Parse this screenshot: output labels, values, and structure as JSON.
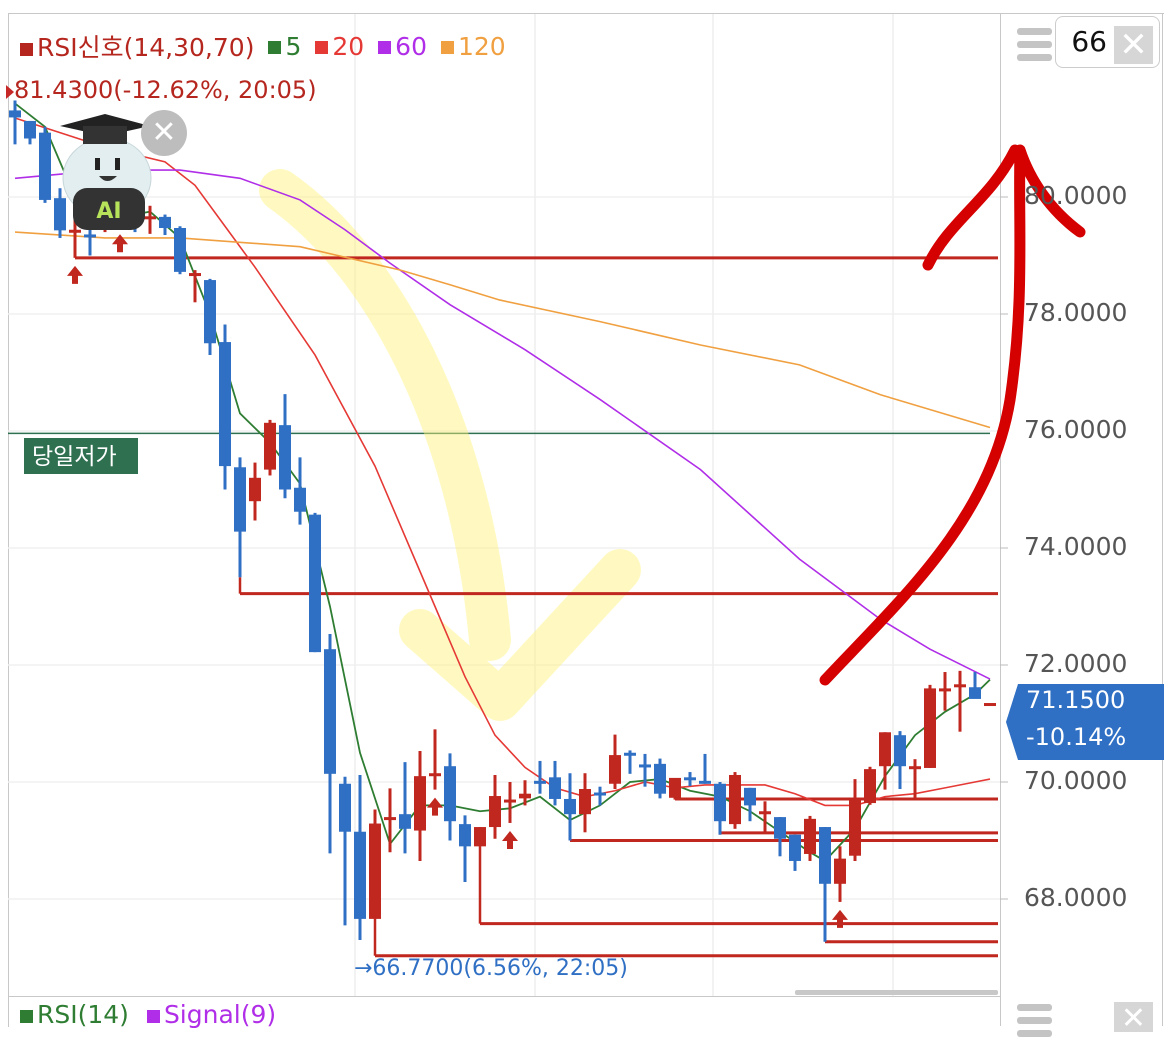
{
  "legend": {
    "items": [
      {
        "label": "RSI신호(14,30,70)",
        "color": "#b5261e"
      },
      {
        "label": "5",
        "color": "#2e7d32"
      },
      {
        "label": "20",
        "color": "#e53935"
      },
      {
        "label": "60",
        "color": "#b02ee8"
      },
      {
        "label": "120",
        "color": "#f0a040"
      }
    ]
  },
  "high_marker": "81.4300(-12.62%, 20:05)",
  "low_marker": "→66.7700(6.56%, 22:05)",
  "day_low_label": "당일저가",
  "current_price": {
    "price": "71.1500",
    "change": "-10.14%"
  },
  "period_input": "66",
  "close_symbol": "✕",
  "ai_badge": "AI",
  "bottom_legend": [
    {
      "label": "RSI(14)",
      "color": "#2e7d32"
    },
    {
      "label": "Signal(9)",
      "color": "#b02ee8"
    }
  ],
  "colors": {
    "up": "#c0271f",
    "down": "#2f6fc4",
    "signal_line": "#c0271f",
    "day_low": "#2f7050"
  },
  "chart_data": {
    "type": "candlestick",
    "y_axis": {
      "ticks": [
        "80.0000",
        "78.0000",
        "76.0000",
        "74.0000",
        "72.0000",
        "70.0000",
        "68.0000"
      ],
      "tick_values": [
        80,
        78,
        76,
        74,
        72,
        70,
        68
      ],
      "position": "right"
    },
    "grid": true,
    "candles_ohlc": [
      [
        81.48,
        81.65,
        80.9,
        81.36
      ],
      [
        81.3,
        81.3,
        80.9,
        81.0
      ],
      [
        81.1,
        81.2,
        79.9,
        79.95
      ],
      [
        79.98,
        80.15,
        79.3,
        79.43
      ],
      [
        79.42,
        79.63,
        78.96,
        79.44
      ],
      [
        79.36,
        79.58,
        79.0,
        79.34
      ],
      [
        79.5,
        79.8,
        79.4,
        79.8
      ],
      [
        79.6,
        79.7,
        79.5,
        79.7
      ],
      [
        79.6,
        79.75,
        79.4,
        79.58
      ],
      [
        79.65,
        79.85,
        79.37,
        79.67
      ],
      [
        79.66,
        79.7,
        79.35,
        79.47
      ],
      [
        79.47,
        79.5,
        78.68,
        78.72
      ],
      [
        78.7,
        78.75,
        78.2,
        78.7
      ],
      [
        78.58,
        78.6,
        77.3,
        77.5
      ],
      [
        77.52,
        77.82,
        75.0,
        75.4
      ],
      [
        75.38,
        75.55,
        73.5,
        74.28
      ],
      [
        74.8,
        75.46,
        74.47,
        75.2
      ],
      [
        75.34,
        76.19,
        75.24,
        76.14
      ],
      [
        76.1,
        76.63,
        74.85,
        75.0
      ],
      [
        75.03,
        75.55,
        74.4,
        74.62
      ],
      [
        74.57,
        74.6,
        72.22,
        72.22
      ],
      [
        72.27,
        72.53,
        68.78,
        70.14
      ],
      [
        69.97,
        70.09,
        67.55,
        69.15
      ],
      [
        69.15,
        70.12,
        67.3,
        67.66
      ],
      [
        67.66,
        69.53,
        67.66,
        69.29
      ],
      [
        69.38,
        69.89,
        68.8,
        69.4
      ],
      [
        69.45,
        70.34,
        68.78,
        69.2
      ],
      [
        69.17,
        70.53,
        68.65,
        70.1
      ],
      [
        70.1,
        70.9,
        69.87,
        70.15
      ],
      [
        70.27,
        70.49,
        69.0,
        69.33
      ],
      [
        69.28,
        69.43,
        68.29,
        68.9
      ],
      [
        68.9,
        69.23,
        68.9,
        69.23
      ],
      [
        69.23,
        70.12,
        69.03,
        69.76
      ],
      [
        69.7,
        70.0,
        69.3,
        69.7
      ],
      [
        69.72,
        70.03,
        69.6,
        69.8
      ],
      [
        70.02,
        70.36,
        69.8,
        70.0
      ],
      [
        70.08,
        70.36,
        69.6,
        69.71
      ],
      [
        69.71,
        70.15,
        69.0,
        69.45
      ],
      [
        69.45,
        70.15,
        69.14,
        69.88
      ],
      [
        69.82,
        69.92,
        69.6,
        69.8
      ],
      [
        69.97,
        70.81,
        69.88,
        70.46
      ],
      [
        70.5,
        70.54,
        70.14,
        70.48
      ],
      [
        70.3,
        70.48,
        69.92,
        70.28
      ],
      [
        70.31,
        70.4,
        69.72,
        69.8
      ],
      [
        69.73,
        70.0,
        69.7,
        70.07
      ],
      [
        70.08,
        70.17,
        69.93,
        70.07
      ],
      [
        70.02,
        70.48,
        69.97,
        70.0
      ],
      [
        69.97,
        70.0,
        69.1,
        69.33
      ],
      [
        69.28,
        70.17,
        69.2,
        70.12
      ],
      [
        69.9,
        69.9,
        69.33,
        69.6
      ],
      [
        69.5,
        69.67,
        69.15,
        69.5
      ],
      [
        69.4,
        69.4,
        68.73,
        69.03
      ],
      [
        69.1,
        69.1,
        68.48,
        68.65
      ],
      [
        68.77,
        69.42,
        68.65,
        69.37
      ],
      [
        69.23,
        69.23,
        67.27,
        68.26
      ],
      [
        68.26,
        68.9,
        67.95,
        68.69
      ],
      [
        68.74,
        70.05,
        68.65,
        69.71
      ],
      [
        69.64,
        70.26,
        69.61,
        70.22
      ],
      [
        70.27,
        70.85,
        69.87,
        70.85
      ],
      [
        70.8,
        70.87,
        69.88,
        70.27
      ],
      [
        70.27,
        70.39,
        69.72,
        70.27
      ],
      [
        70.24,
        71.66,
        70.24,
        71.6
      ],
      [
        71.6,
        71.88,
        71.22,
        71.6
      ],
      [
        71.67,
        71.9,
        70.86,
        71.67
      ],
      [
        71.62,
        71.88,
        71.6,
        71.42
      ],
      [
        71.35,
        71.35,
        71.35,
        71.35
      ]
    ],
    "ma": [
      {
        "name": "5",
        "color": "#2e7d32",
        "points": [
          [
            0,
            81.6
          ],
          [
            2,
            81.2
          ],
          [
            4,
            80.0
          ],
          [
            6,
            79.6
          ],
          [
            9,
            79.75
          ],
          [
            11,
            79.3
          ],
          [
            13,
            78.0
          ],
          [
            15,
            76.3
          ],
          [
            17,
            75.8
          ],
          [
            19,
            75.1
          ],
          [
            21,
            73.0
          ],
          [
            23,
            70.5
          ],
          [
            25,
            68.94
          ],
          [
            27,
            69.6
          ],
          [
            29,
            69.6
          ],
          [
            31,
            69.5
          ],
          [
            33,
            69.55
          ],
          [
            35,
            69.75
          ],
          [
            37,
            69.35
          ],
          [
            39,
            69.6
          ],
          [
            41,
            70.0
          ],
          [
            43,
            70.05
          ],
          [
            45,
            69.85
          ],
          [
            47,
            69.75
          ],
          [
            49,
            69.5
          ],
          [
            51,
            69.15
          ],
          [
            53,
            68.8
          ],
          [
            54,
            68.65
          ],
          [
            56,
            69.2
          ],
          [
            58,
            70.1
          ],
          [
            60,
            70.8
          ],
          [
            62,
            71.2
          ],
          [
            64,
            71.5
          ],
          [
            65,
            71.75
          ]
        ]
      },
      {
        "name": "20",
        "color": "#e53935",
        "points": [
          [
            0,
            81.35
          ],
          [
            6,
            80.85
          ],
          [
            10,
            80.6
          ],
          [
            12,
            80.2
          ],
          [
            14,
            79.5
          ],
          [
            16,
            78.8
          ],
          [
            20,
            77.3
          ],
          [
            24,
            75.4
          ],
          [
            28,
            73.0
          ],
          [
            30,
            71.8
          ],
          [
            32,
            70.8
          ],
          [
            34,
            70.25
          ],
          [
            36,
            69.9
          ],
          [
            38,
            69.75
          ],
          [
            40,
            69.85
          ],
          [
            42,
            70.0
          ],
          [
            44,
            69.9
          ],
          [
            46,
            69.95
          ],
          [
            48,
            69.95
          ],
          [
            50,
            69.95
          ],
          [
            52,
            69.8
          ],
          [
            54,
            69.6
          ],
          [
            56,
            69.6
          ],
          [
            58,
            69.75
          ],
          [
            60,
            69.8
          ],
          [
            62,
            69.9
          ],
          [
            64,
            70.0
          ],
          [
            65,
            70.05
          ]
        ]
      },
      {
        "name": "60",
        "color": "#b02ee8",
        "points": [
          [
            0,
            80.32
          ],
          [
            6,
            80.46
          ],
          [
            11,
            80.46
          ],
          [
            15,
            80.32
          ],
          [
            19,
            79.95
          ],
          [
            22,
            79.44
          ],
          [
            25,
            78.87
          ],
          [
            29,
            78.16
          ],
          [
            34,
            77.39
          ],
          [
            39,
            76.54
          ],
          [
            45.7,
            75.34
          ],
          [
            52.3,
            73.81
          ],
          [
            57.7,
            72.78
          ],
          [
            61,
            72.27
          ],
          [
            65,
            71.76
          ]
        ]
      },
      {
        "name": "120",
        "color": "#f0a040",
        "points": [
          [
            0,
            79.4
          ],
          [
            6,
            79.3
          ],
          [
            11,
            79.3
          ],
          [
            19,
            79.15
          ],
          [
            25.7,
            78.75
          ],
          [
            29,
            78.5
          ],
          [
            32.3,
            78.24
          ],
          [
            39,
            77.87
          ],
          [
            45.7,
            77.47
          ],
          [
            52.3,
            77.13
          ],
          [
            57.7,
            76.62
          ],
          [
            65,
            76.06
          ]
        ]
      }
    ],
    "signal_levels": [
      {
        "value": 78.96,
        "from": 4
      },
      {
        "value": 73.22,
        "from": 15
      },
      {
        "value": 69.71,
        "from": 44
      },
      {
        "value": 69.13,
        "from": 47
      },
      {
        "value": 69.0,
        "from": 37
      },
      {
        "value": 67.58,
        "from": 31
      },
      {
        "value": 67.27,
        "from": 54
      },
      {
        "value": 67.03,
        "from": 24
      }
    ],
    "day_low_value": 75.96,
    "buy_signal_arrows": [
      4,
      7,
      28,
      33,
      55
    ]
  }
}
